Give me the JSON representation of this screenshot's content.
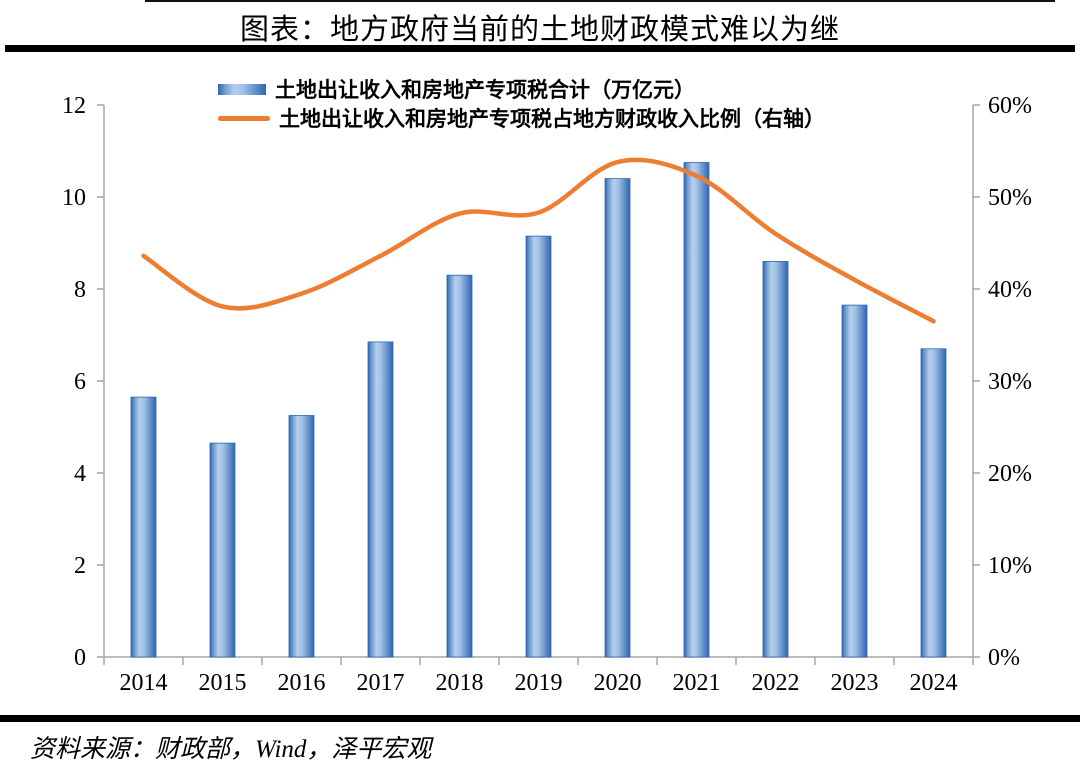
{
  "page": {
    "title": "图表：地方政府当前的土地财政模式难以为继",
    "source": "资料来源：财政部，Wind，泽平宏观"
  },
  "legend": {
    "bar_label": "土地出让收入和房地产专项税合计（万亿元）",
    "line_label": "土地出让收入和房地产专项税占地方财政收入比例（右轴）"
  },
  "colors": {
    "bar_edge": "#2f66ae",
    "bar_mid_light": "#b7cfec",
    "line_orange": "#ed7d31",
    "axis_gray": "#a6a6a6",
    "text_black": "#000000",
    "rule_black": "#000000"
  },
  "chart_data": {
    "type": "bar",
    "title": "图表：地方政府当前的土地财政模式难以为继",
    "categories": [
      "2014",
      "2015",
      "2016",
      "2017",
      "2018",
      "2019",
      "2020",
      "2021",
      "2022",
      "2023",
      "2024"
    ],
    "series": [
      {
        "name": "土地出让收入和房地产专项税合计（万亿元）",
        "type": "bar",
        "axis": "left",
        "unit": "万亿元",
        "values": [
          5.65,
          4.65,
          5.25,
          6.85,
          8.3,
          9.15,
          10.4,
          10.75,
          8.6,
          7.65,
          6.7
        ]
      },
      {
        "name": "土地出让收入和房地产专项税占地方财政收入比例（右轴）",
        "type": "line",
        "axis": "right",
        "unit": "%",
        "values": [
          43.6,
          38.1,
          39.5,
          43.6,
          48.2,
          48.3,
          53.8,
          52.3,
          46.0,
          41.0,
          36.5
        ]
      }
    ],
    "left_axis": {
      "min": 0,
      "max": 12,
      "step": 2,
      "ticks": [
        "0",
        "2",
        "4",
        "6",
        "8",
        "10",
        "12"
      ]
    },
    "right_axis": {
      "min": 0,
      "max": 60,
      "step": 10,
      "ticks": [
        "0%",
        "10%",
        "20%",
        "30%",
        "40%",
        "50%",
        "60%"
      ]
    },
    "legend_position": "top-left",
    "grid": false,
    "line_smooth": true
  }
}
